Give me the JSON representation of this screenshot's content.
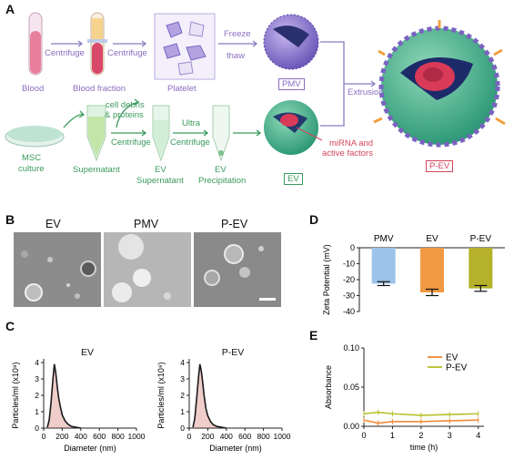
{
  "panels": {
    "a": "A",
    "b": "B",
    "c": "C",
    "d": "D",
    "e": "E"
  },
  "panel_a": {
    "blood": "Blood",
    "centrifuge_1": "Centrifuge",
    "blood_fraction": "Blood fraction",
    "centrifuge_2": "Centrifuge",
    "platelet": "Platelet",
    "freeze": "Freeze",
    "thaw": "thaw",
    "pmv": "PMV",
    "extrusion": "Extrusion",
    "msc": "MSC",
    "culture": "culture",
    "cell_debris_1": "cell debris",
    "cell_debris_2": "& proteins",
    "centrifuge_3": "Centrifuge",
    "supernatant": "Supernatant",
    "ultra": "Ultra",
    "centrifuge_4": "Centrifuge",
    "ev_sup_1": "EV",
    "ev_sup_2": "Supernatant",
    "ev_prec_1": "EV",
    "ev_prec_2": "Precipitation",
    "ev": "EV",
    "mirna_1": "miRNA and",
    "mirna_2": "active factors",
    "pev": "P-EV"
  },
  "panel_b": {
    "titles": [
      "EV",
      "PMV",
      "P-EV"
    ]
  },
  "panel_c": {
    "ylabel": "Particles/ml (x10⁸)",
    "xlabel": "Diameter (nm)",
    "titles": [
      "EV",
      "P-EV"
    ],
    "chart_data": [
      {
        "type": "line",
        "title": "EV",
        "xlabel": "Diameter (nm)",
        "ylabel": "Particles/ml (x10⁸)",
        "xlim": [
          0,
          1000
        ],
        "ylim": [
          0,
          4
        ],
        "x": [
          40,
          60,
          80,
          100,
          115,
          130,
          145,
          160,
          180,
          200,
          230,
          260,
          300,
          350,
          400
        ],
        "values": [
          0.05,
          0.5,
          1.6,
          3.0,
          3.9,
          3.4,
          2.6,
          1.9,
          1.3,
          0.8,
          0.45,
          0.25,
          0.1,
          0.05,
          0
        ]
      },
      {
        "type": "line",
        "title": "P-EV",
        "xlabel": "Diameter (nm)",
        "ylabel": "Particles/ml (x10⁸)",
        "xlim": [
          0,
          1000
        ],
        "ylim": [
          0,
          4
        ],
        "x": [
          40,
          60,
          80,
          100,
          115,
          130,
          145,
          160,
          180,
          200,
          230,
          260,
          300,
          350,
          400
        ],
        "values": [
          0.05,
          0.6,
          1.8,
          3.1,
          3.9,
          3.5,
          2.8,
          2.0,
          1.2,
          0.75,
          0.4,
          0.2,
          0.1,
          0.05,
          0
        ]
      }
    ]
  },
  "panel_d": {
    "chart_data": {
      "type": "bar",
      "categories": [
        "PMV",
        "EV",
        "P-EV"
      ],
      "values": [
        -22.5,
        -28,
        -25.5
      ],
      "errors": [
        1.2,
        2,
        1.8
      ],
      "colors": [
        "#9dc3ea",
        "#f09a45",
        "#b5b12a"
      ],
      "ylabel": "Zeta Potential (mV)",
      "ylim": [
        -40,
        0
      ],
      "yticks": [
        0,
        -10,
        -20,
        -30,
        -40
      ]
    }
  },
  "panel_e": {
    "chart_data": {
      "type": "line",
      "xlabel": "time (h)",
      "ylabel": "Absorbance",
      "xlim": [
        0,
        4.2
      ],
      "ylim": [
        0,
        0.1
      ],
      "yticks": [
        "0.00",
        "0.05",
        "0.10"
      ],
      "xticks": [
        0,
        1,
        2,
        3,
        4
      ],
      "x": [
        0,
        0.5,
        1,
        2,
        3,
        4
      ],
      "series": [
        {
          "name": "EV",
          "color": "#f08a3a",
          "values": [
            0.008,
            0.004,
            0.006,
            0.006,
            0.007,
            0.008
          ]
        },
        {
          "name": "P-EV",
          "color": "#b7c02c",
          "values": [
            0.016,
            0.018,
            0.016,
            0.014,
            0.015,
            0.016
          ]
        }
      ]
    }
  }
}
